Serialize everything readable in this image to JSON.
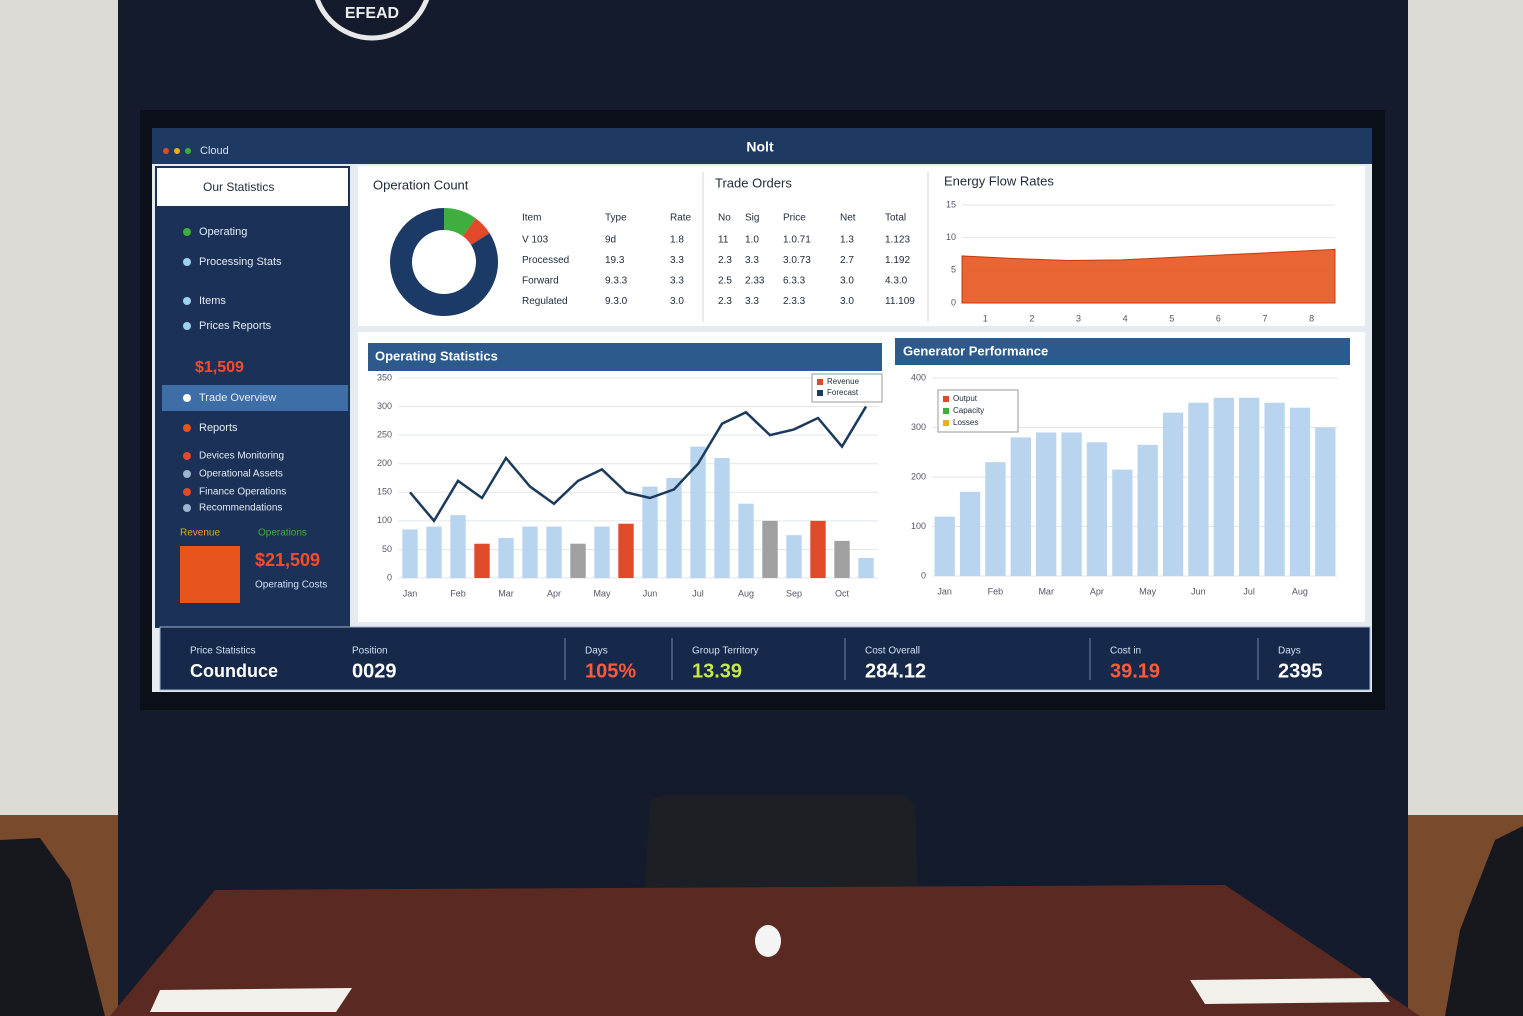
{
  "logo": {
    "text": "EFEAD"
  },
  "window": {
    "app": "Cloud",
    "title": "Nolt"
  },
  "sidebar": {
    "header": "Our Statistics",
    "items": [
      "Operating",
      "Processing Stats",
      "Items",
      "Prices Reports",
      "Trade Overview",
      "Reports",
      "Devices Monitoring",
      "Operational Assets",
      "Finance Operations",
      "Recommendations"
    ],
    "highlight": "$1,509",
    "footer_labels": [
      "Revenue",
      "Operations"
    ],
    "footer_value": "$21,509",
    "footer_note": "Operating Costs"
  },
  "donut_panel": {
    "title": "Operation Count",
    "values": [
      10,
      6,
      84
    ],
    "colors": [
      "#3fae3f",
      "#e04a2a",
      "#1b3a66"
    ]
  },
  "table_panel": {
    "title": "Trade Orders",
    "columns": [
      "Item",
      "Type",
      "Rate",
      "No",
      "Sig",
      "Price",
      "Net",
      "Total"
    ],
    "rows": [
      [
        "V 103",
        "9d",
        "1.8",
        "11",
        "1.0",
        "1.0.71",
        "1.3",
        "1.123"
      ],
      [
        "Processed",
        "19.3",
        "3.3",
        "2.3",
        "3.3",
        "3.0.73",
        "2.7",
        "1.192"
      ],
      [
        "Forward",
        "9.3.3",
        "3.3",
        "2.5",
        "2.33",
        "6.3.3",
        "3.0",
        "4.3.0"
      ],
      [
        "Regulated",
        "9.3.0",
        "3.0",
        "2.3",
        "3.3",
        "2.3.3",
        "3.0",
        "11.109"
      ]
    ]
  },
  "area_panel": {
    "title": "Energy Flow Rates",
    "categories": [
      "1",
      "2",
      "3",
      "4",
      "5",
      "6",
      "7",
      "8"
    ],
    "values": [
      7.2,
      6.8,
      6.5,
      6.6,
      7,
      7.4,
      7.8,
      8.2
    ],
    "color": "#e8541e",
    "ylim": [
      0,
      15
    ],
    "yticks": [
      0,
      5,
      10,
      15
    ]
  },
  "combo_panel": {
    "title": "Operating Statistics",
    "categories": [
      "Jan",
      null,
      "Feb",
      null,
      "Mar",
      null,
      "Apr",
      null,
      "May",
      null,
      "Jun",
      null,
      "Jul",
      null,
      "Aug",
      null,
      "Sep",
      null,
      "Oct",
      null
    ],
    "bars": {
      "values": [
        85,
        90,
        110,
        60,
        70,
        90,
        90,
        60,
        90,
        95,
        160,
        175,
        230,
        210,
        130,
        100,
        75,
        100,
        65,
        35
      ],
      "colors": [
        "#b8d4ee",
        "#b8d4ee",
        "#b8d4ee",
        "#e04a2a",
        "#b8d4ee",
        "#b8d4ee",
        "#b8d4ee",
        "#a0a0a0",
        "#b8d4ee",
        "#e04a2a",
        "#b8d4ee",
        "#b8d4ee",
        "#b8d4ee",
        "#b8d4ee",
        "#b8d4ee",
        "#a0a0a0",
        "#b8d4ee",
        "#e04a2a",
        "#a0a0a0",
        "#b8d4ee"
      ]
    },
    "line": {
      "values": [
        150,
        100,
        170,
        140,
        210,
        160,
        130,
        170,
        190,
        150,
        140,
        155,
        200,
        270,
        290,
        250,
        260,
        280,
        230,
        300
      ],
      "color": "#1b3a5c"
    },
    "legend": [
      "Revenue",
      "Forecast"
    ],
    "ylim": [
      0,
      350
    ],
    "yticks": [
      0,
      50,
      100,
      150,
      200,
      250,
      300,
      350
    ],
    "grid": true
  },
  "bar_panel": {
    "title": "Generator Performance",
    "categories": [
      "Jan",
      null,
      "Feb",
      null,
      "Mar",
      null,
      "Apr",
      null,
      "May",
      null,
      "Jun",
      null,
      "Jul",
      null,
      "Aug",
      null
    ],
    "values": [
      120,
      170,
      230,
      280,
      290,
      290,
      270,
      215,
      265,
      330,
      350,
      360,
      360,
      350,
      340,
      300
    ],
    "color": "#b8d4ee",
    "legend": [
      "Output",
      "Capacity",
      "Losses"
    ],
    "ylim": [
      0,
      400
    ],
    "yticks": [
      0,
      100,
      200,
      300,
      400
    ],
    "grid": true
  },
  "kpis": [
    {
      "label": "Price Statistics",
      "value": "Counduce",
      "color": "#ffffff"
    },
    {
      "label": "Position",
      "value": "0029",
      "color": "#ffffff"
    },
    {
      "label": "Days",
      "value": "105%",
      "color": "#ff5a3c"
    },
    {
      "label": "Group Territory",
      "value": "13.39",
      "color": "#c6e84a"
    },
    {
      "label": "Cost Overall",
      "value": "284.12",
      "color": "#ffffff"
    },
    {
      "label": "Cost in",
      "value": "39.19",
      "color": "#ff5a3c"
    },
    {
      "label": "Days",
      "value": "2395",
      "color": "#ffffff"
    }
  ]
}
